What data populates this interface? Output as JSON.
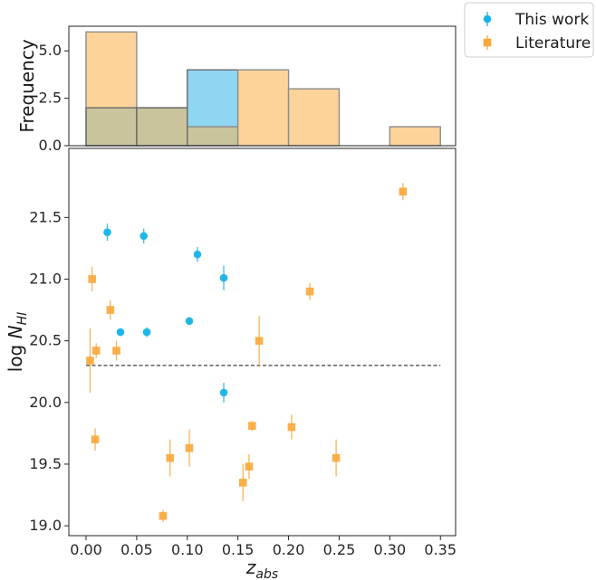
{
  "chart_data": [
    {
      "type": "bar",
      "panel": "histogram",
      "ylabel": "Frequency",
      "xlim": [
        -0.017,
        0.365
      ],
      "ylim": [
        0,
        6.3
      ],
      "y_ticks": [
        0.0,
        2.5,
        5.0
      ],
      "y_tick_labels": [
        "0.0",
        "2.5",
        "5.0"
      ],
      "bin_edges": [
        0.0,
        0.05,
        0.1,
        0.15,
        0.2,
        0.25,
        0.3,
        0.35
      ],
      "series": [
        {
          "name": "Literature",
          "color": "#fdd39a",
          "counts": [
            6,
            2,
            1,
            4,
            3,
            0,
            1
          ]
        },
        {
          "name": "This work",
          "color": "#8fd6f3",
          "counts": [
            2,
            2,
            4,
            0,
            0,
            0,
            0
          ]
        }
      ],
      "overlap_color": "#c9c49c",
      "grid": false
    },
    {
      "type": "scatter",
      "panel": "scatter",
      "xlabel": "z",
      "xlabel_sub": "abs",
      "ylabel": "log N",
      "ylabel_sub": "HI",
      "xlim": [
        -0.017,
        0.365
      ],
      "ylim": [
        18.92,
        22.06
      ],
      "x_ticks": [
        0.0,
        0.05,
        0.1,
        0.15,
        0.2,
        0.25,
        0.3,
        0.35
      ],
      "x_tick_labels": [
        "0.00",
        "0.05",
        "0.10",
        "0.15",
        "0.20",
        "0.25",
        "0.30",
        "0.35"
      ],
      "y_ticks": [
        19.0,
        19.5,
        20.0,
        20.5,
        21.0,
        21.5
      ],
      "y_tick_labels": [
        "19.0",
        "19.5",
        "20.0",
        "20.5",
        "21.0",
        "21.5"
      ],
      "reference_line": {
        "y": 20.3,
        "x_range": [
          0.0,
          0.35
        ],
        "style": "dashed"
      },
      "series": [
        {
          "name": "This work",
          "marker": "circle",
          "color": "#17b3e6",
          "points": [
            {
              "x": 0.021,
              "y": 21.38,
              "err": 0.07
            },
            {
              "x": 0.057,
              "y": 21.35,
              "err": 0.06
            },
            {
              "x": 0.11,
              "y": 21.2,
              "err": 0.06
            },
            {
              "x": 0.136,
              "y": 21.01,
              "err": 0.1
            },
            {
              "x": 0.034,
              "y": 20.57,
              "err": 0.03
            },
            {
              "x": 0.06,
              "y": 20.57,
              "err": 0.04
            },
            {
              "x": 0.102,
              "y": 20.66,
              "err": 0.03
            },
            {
              "x": 0.136,
              "y": 20.08,
              "err": 0.08
            }
          ]
        },
        {
          "name": "Literature",
          "marker": "square",
          "color": "#f8a73a",
          "points": [
            {
              "x": 0.313,
              "y": 21.71,
              "err": 0.07
            },
            {
              "x": 0.006,
              "y": 21.0,
              "err": 0.1
            },
            {
              "x": 0.024,
              "y": 20.75,
              "err": 0.08
            },
            {
              "x": 0.221,
              "y": 20.9,
              "err": 0.07
            },
            {
              "x": 0.171,
              "y": 20.5,
              "err": 0.2
            },
            {
              "x": 0.004,
              "y": 20.34,
              "err": 0.26
            },
            {
              "x": 0.01,
              "y": 20.42,
              "err": 0.06
            },
            {
              "x": 0.03,
              "y": 20.42,
              "err": 0.08
            },
            {
              "x": 0.164,
              "y": 19.81,
              "err": 0.04
            },
            {
              "x": 0.203,
              "y": 19.8,
              "err": 0.1
            },
            {
              "x": 0.009,
              "y": 19.7,
              "err": 0.09
            },
            {
              "x": 0.083,
              "y": 19.55,
              "err": 0.15
            },
            {
              "x": 0.102,
              "y": 19.63,
              "err": 0.15
            },
            {
              "x": 0.247,
              "y": 19.55,
              "err": 0.15
            },
            {
              "x": 0.155,
              "y": 19.35,
              "err": 0.15
            },
            {
              "x": 0.161,
              "y": 19.48,
              "err": 0.1
            },
            {
              "x": 0.076,
              "y": 19.08,
              "err": 0.05
            }
          ]
        }
      ],
      "grid": false
    }
  ],
  "legend": {
    "placement": "top-right, outside",
    "entries": [
      {
        "label": "This work",
        "color": "#17b3e6",
        "marker": "circle"
      },
      {
        "label": "Literature",
        "color": "#f8a73a",
        "marker": "square"
      }
    ]
  }
}
